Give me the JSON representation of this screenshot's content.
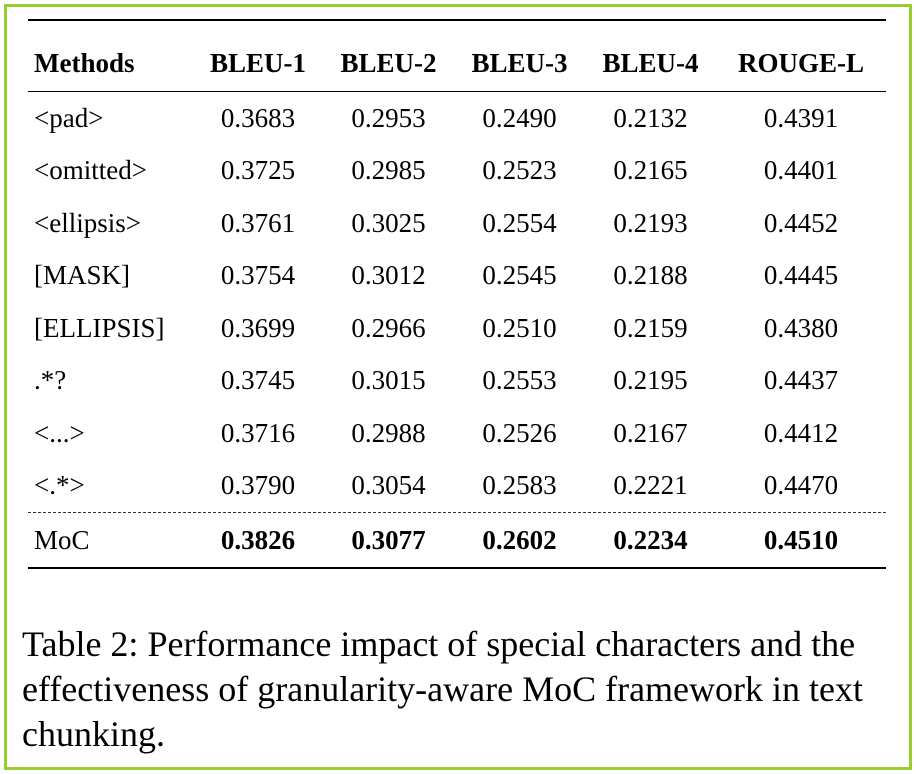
{
  "table": {
    "headers": [
      "Methods",
      "BLEU-1",
      "BLEU-2",
      "BLEU-3",
      "BLEU-4",
      "ROUGE-L"
    ],
    "rows": [
      {
        "method": "<pad>",
        "values": [
          "0.3683",
          "0.2953",
          "0.2490",
          "0.2132",
          "0.4391"
        ]
      },
      {
        "method": "<omitted>",
        "values": [
          "0.3725",
          "0.2985",
          "0.2523",
          "0.2165",
          "0.4401"
        ]
      },
      {
        "method": "<ellipsis>",
        "values": [
          "0.3761",
          "0.3025",
          "0.2554",
          "0.2193",
          "0.4452"
        ]
      },
      {
        "method": "[MASK]",
        "values": [
          "0.3754",
          "0.3012",
          "0.2545",
          "0.2188",
          "0.4445"
        ]
      },
      {
        "method": "[ELLIPSIS]",
        "values": [
          "0.3699",
          "0.2966",
          "0.2510",
          "0.2159",
          "0.4380"
        ]
      },
      {
        "method": ".*?",
        "values": [
          "0.3745",
          "0.3015",
          "0.2553",
          "0.2195",
          "0.4437"
        ]
      },
      {
        "method": "<...>",
        "values": [
          "0.3716",
          "0.2988",
          "0.2526",
          "0.2167",
          "0.4412"
        ]
      },
      {
        "method": "<.*>",
        "values": [
          "0.3790",
          "0.3054",
          "0.2583",
          "0.2221",
          "0.4470"
        ]
      }
    ],
    "final_row": {
      "method": "MoC",
      "values": [
        "0.3826",
        "0.3077",
        "0.2602",
        "0.2234",
        "0.4510"
      ]
    }
  },
  "caption": "Table 2: Performance impact of special characters and the effectiveness of granularity-aware MoC framework in text chunking.",
  "colors": {
    "frame_border": "#9ACD32"
  }
}
